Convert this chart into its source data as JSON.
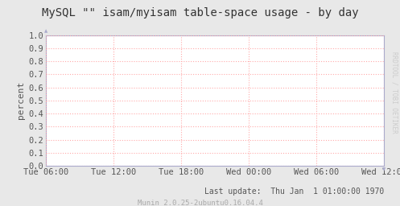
{
  "title": "MySQL \"\" isam/myisam table-space usage - by day",
  "ylabel": "percent",
  "background_color": "#e8e8e8",
  "plot_bg_color": "#ffffff",
  "grid_color": "#ffaaaa",
  "border_color": "#aaaacc",
  "yticks": [
    0.0,
    0.1,
    0.2,
    0.3,
    0.4,
    0.5,
    0.6,
    0.7,
    0.8,
    0.9,
    1.0
  ],
  "ylim": [
    0.0,
    1.0
  ],
  "xtick_labels": [
    "Tue 06:00",
    "Tue 12:00",
    "Tue 18:00",
    "Wed 00:00",
    "Wed 06:00",
    "Wed 12:00"
  ],
  "footer_text": "Last update:  Thu Jan  1 01:00:00 1970",
  "munin_text": "Munin 2.0.25-2ubuntu0.16.04.4",
  "watermark": "RRDTOOL / TOBI OETIKER",
  "title_fontsize": 10,
  "axis_fontsize": 7.5,
  "footer_fontsize": 7,
  "munin_fontsize": 6.5,
  "watermark_fontsize": 5.5,
  "tick_color": "#555555",
  "footer_color": "#555555",
  "munin_color": "#aaaaaa",
  "watermark_color": "#cccccc",
  "title_color": "#333333"
}
